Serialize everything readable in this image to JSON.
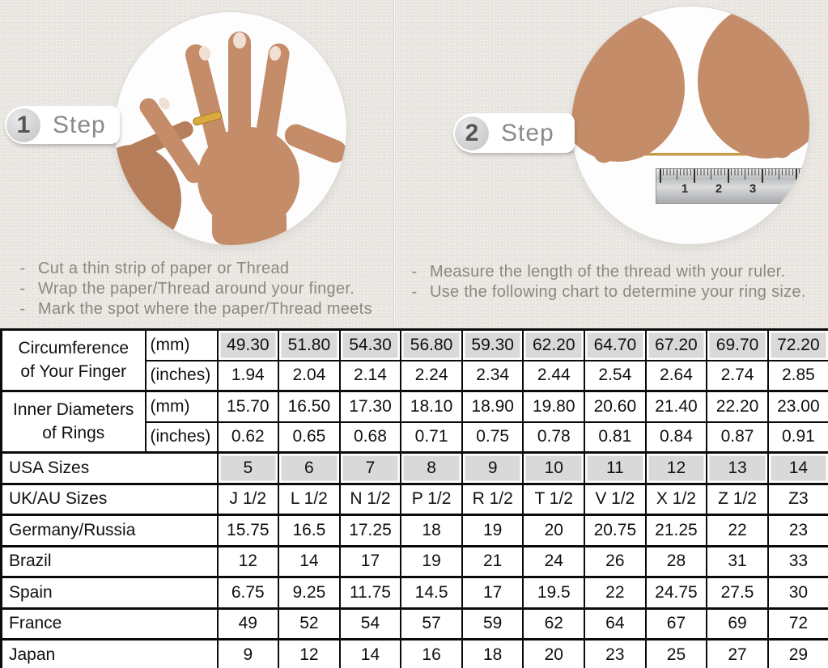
{
  "colors": {
    "background": "#e9e6e1",
    "table_shaded": "#d9d9d9",
    "skin": "#c48c68",
    "ring_gold": "#d9ab3e",
    "thread_gold": "#c49a45",
    "step_text": "#8a8a8a",
    "instruction_text": "#8b8781",
    "table_border": "#0b0b0b"
  },
  "steps": [
    {
      "number": "1",
      "label": "Step",
      "photo": "hand-with-ring-photo",
      "instructions": [
        "Cut a thin strip of paper or Thread",
        "Wrap the paper/Thread around your finger.",
        "Mark the spot where the paper/Thread meets"
      ]
    },
    {
      "number": "2",
      "label": "Step",
      "photo": "measuring-thread-with-ruler-photo",
      "instructions": [
        "Measure the length of the thread with your ruler.",
        "Use the following chart to determine your ring size."
      ]
    }
  ],
  "photos": {
    "ruler_numbers": [
      "1",
      "2",
      "3"
    ]
  },
  "table": {
    "measure_groups": [
      {
        "label": "Circumference\nof Your Finger",
        "rows": [
          {
            "unit": "(mm)",
            "shaded": true,
            "values": [
              "49.30",
              "51.80",
              "54.30",
              "56.80",
              "59.30",
              "62.20",
              "64.70",
              "67.20",
              "69.70",
              "72.20"
            ]
          },
          {
            "unit": "(inches)",
            "shaded": false,
            "values": [
              "1.94",
              "2.04",
              "2.14",
              "2.24",
              "2.34",
              "2.44",
              "2.54",
              "2.64",
              "2.74",
              "2.85"
            ]
          }
        ]
      },
      {
        "label": "Inner Diameters\nof Rings",
        "rows": [
          {
            "unit": "(mm)",
            "shaded": false,
            "values": [
              "15.70",
              "16.50",
              "17.30",
              "18.10",
              "18.90",
              "19.80",
              "20.60",
              "21.40",
              "22.20",
              "23.00"
            ]
          },
          {
            "unit": "(inches)",
            "shaded": false,
            "values": [
              "0.62",
              "0.65",
              "0.68",
              "0.71",
              "0.75",
              "0.78",
              "0.81",
              "0.84",
              "0.87",
              "0.91"
            ]
          }
        ]
      }
    ],
    "size_rows": [
      {
        "label": "USA Sizes",
        "shaded": true,
        "values": [
          "5",
          "6",
          "7",
          "8",
          "9",
          "10",
          "11",
          "12",
          "13",
          "14"
        ]
      },
      {
        "label": "UK/AU Sizes",
        "shaded": false,
        "values": [
          "J 1/2",
          "L 1/2",
          "N 1/2",
          "P 1/2",
          "R 1/2",
          "T 1/2",
          "V 1/2",
          "X 1/2",
          "Z 1/2",
          "Z3"
        ]
      },
      {
        "label": "Germany/Russia",
        "shaded": false,
        "values": [
          "15.75",
          "16.5",
          "17.25",
          "18",
          "19",
          "20",
          "20.75",
          "21.25",
          "22",
          "23"
        ]
      },
      {
        "label": "Brazil",
        "shaded": false,
        "values": [
          "12",
          "14",
          "17",
          "19",
          "21",
          "24",
          "26",
          "28",
          "31",
          "33"
        ]
      },
      {
        "label": "Spain",
        "shaded": false,
        "values": [
          "6.75",
          "9.25",
          "11.75",
          "14.5",
          "17",
          "19.5",
          "22",
          "24.75",
          "27.5",
          "30"
        ]
      },
      {
        "label": "France",
        "shaded": false,
        "values": [
          "49",
          "52",
          "54",
          "57",
          "59",
          "62",
          "64",
          "67",
          "69",
          "72"
        ]
      },
      {
        "label": "Japan",
        "shaded": false,
        "values": [
          "9",
          "12",
          "14",
          "16",
          "18",
          "20",
          "23",
          "25",
          "27",
          "29"
        ]
      }
    ]
  }
}
